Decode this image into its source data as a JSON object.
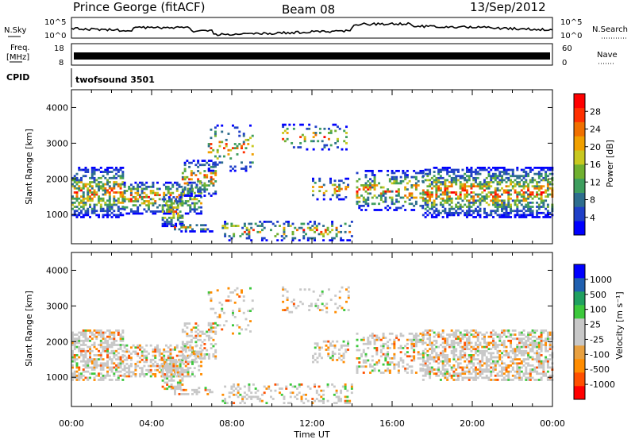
{
  "header": {
    "station": "Prince George (fitACF)",
    "beam": "Beam 08",
    "date": "13/Sep/2012"
  },
  "side_labels": {
    "nsky": "N.Sky",
    "nsearch": "N.Search",
    "freq_line1": "Freq.",
    "freq_line2": "[MHz]",
    "nave": "Nave",
    "cpid": "CPID"
  },
  "strip_ticks": {
    "noise_left": [
      "10^5",
      "10^0"
    ],
    "noise_right": [
      "10^5",
      "10^0"
    ],
    "freq_left": [
      "18",
      "8"
    ],
    "freq_right": [
      "60",
      "0"
    ]
  },
  "cpid_text": "twofsound 3501",
  "colors": {
    "power_scale": [
      "#0000ff",
      "#2040c8",
      "#2e6e8e",
      "#3e9e5e",
      "#70b030",
      "#c8c820",
      "#f0a000",
      "#f07000",
      "#ff3000",
      "#ff0000"
    ],
    "velocity_scale": [
      "#ff0000",
      "#ff5000",
      "#ff8c00",
      "#e8a040",
      "#c8c8c8",
      "#c8c8c8",
      "#3cc83c",
      "#20a060",
      "#2060b0",
      "#0000ff"
    ]
  },
  "chart_data": [
    {
      "type": "heatmap",
      "name": "Power",
      "ylabel": "Slant Range [km]",
      "ylim": [
        180,
        4500
      ],
      "yticks": [
        "1000",
        "2000",
        "3000",
        "4000"
      ],
      "xlim": [
        0,
        24
      ],
      "xticks": [
        "00:00",
        "04:00",
        "08:00",
        "12:00",
        "16:00",
        "20:00",
        "00:00"
      ],
      "colorbar": {
        "label": "Power [dB]",
        "ticks": [
          "4",
          "8",
          "12",
          "16",
          "20",
          "24",
          "28"
        ]
      }
    },
    {
      "type": "heatmap",
      "name": "Velocity",
      "ylabel": "Slant Range [km]",
      "ylim": [
        180,
        4500
      ],
      "yticks": [
        "1000",
        "2000",
        "3000",
        "4000"
      ],
      "xlim": [
        0,
        24
      ],
      "xticks": [
        "00:00",
        "04:00",
        "08:00",
        "12:00",
        "16:00",
        "20:00",
        "00:00"
      ],
      "xlabel": "Time UT",
      "colorbar": {
        "label": "Velocity [m s⁻¹]",
        "ticks": [
          "1000",
          "500",
          "100",
          "25",
          "-25",
          "-100",
          "-500",
          "-1000"
        ]
      }
    }
  ]
}
